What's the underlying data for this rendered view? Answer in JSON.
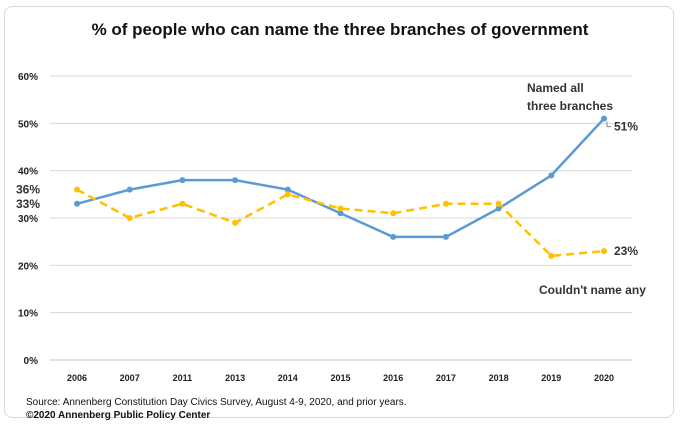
{
  "chart_data": {
    "type": "line",
    "title": "% of people who can name the three branches of government",
    "xlabel": "",
    "ylabel": "",
    "categories": [
      "2006",
      "2007",
      "2011",
      "2013",
      "2014",
      "2015",
      "2016",
      "2017",
      "2018",
      "2019",
      "2020"
    ],
    "y_ticks": [
      "0%",
      "10%",
      "20%",
      "30%",
      "40%",
      "50%",
      "60%"
    ],
    "ylim": [
      0,
      60
    ],
    "grid": true,
    "series": [
      {
        "name": "Named all three branches",
        "color": "#5b9bd5",
        "line_style": "solid",
        "values": [
          33,
          36,
          38,
          38,
          36,
          31,
          26,
          26,
          32,
          39,
          51
        ],
        "start_label": "33%",
        "end_label": "51%"
      },
      {
        "name": "Couldn't name any",
        "color": "#ffc000",
        "line_style": "dashed",
        "values": [
          36,
          30,
          33,
          29,
          35,
          32,
          31,
          33,
          33,
          22,
          23
        ],
        "start_label": "36%",
        "end_label": "23%"
      }
    ]
  },
  "footer": {
    "source": "Source: Annenberg Constitution Day Civics Survey, August 4-9, 2020, and prior years.",
    "copyright": "©2020 Annenberg Public Policy Center"
  }
}
